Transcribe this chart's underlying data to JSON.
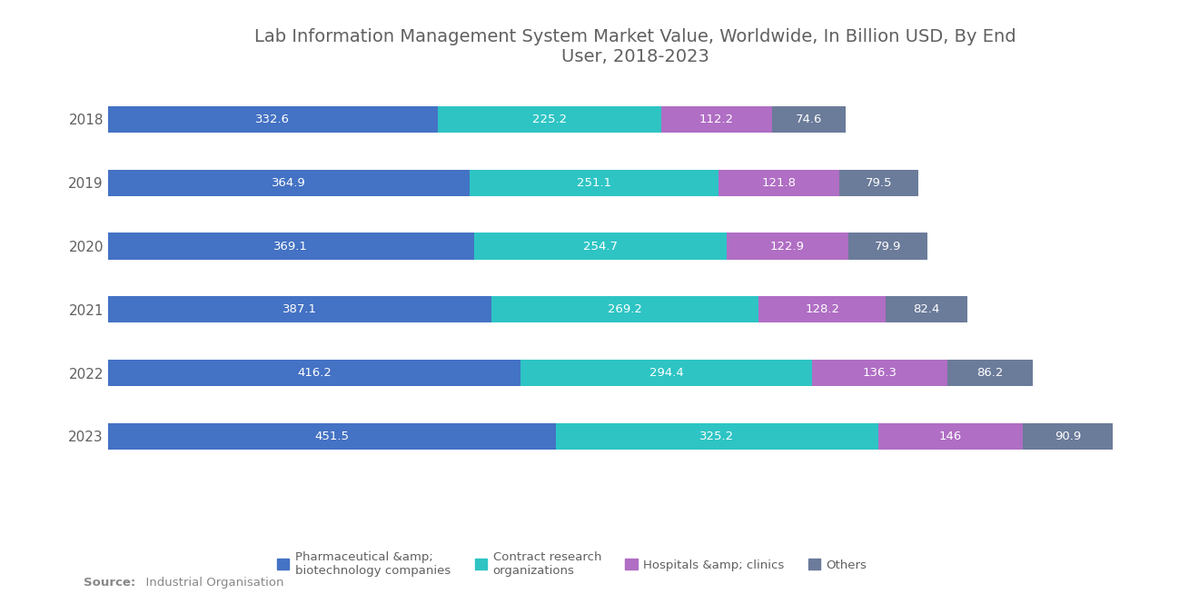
{
  "title": "Lab Information Management System Market Value, Worldwide, In Billion USD, By End\nUser, 2018-2023",
  "years": [
    "2018",
    "2019",
    "2020",
    "2021",
    "2022",
    "2023"
  ],
  "series": {
    "Pharmaceutical &amp;\nbiotechnology companies": [
      332.6,
      364.9,
      369.1,
      387.1,
      416.2,
      451.5
    ],
    "Contract research\norganizations": [
      225.2,
      251.1,
      254.7,
      269.2,
      294.4,
      325.2
    ],
    "Hospitals &amp; clinics": [
      112.2,
      121.8,
      122.9,
      128.2,
      136.3,
      146
    ],
    "Others": [
      74.6,
      79.5,
      79.9,
      82.4,
      86.2,
      90.9
    ]
  },
  "colors": [
    "#4472C4",
    "#2EC4C4",
    "#B06EC4",
    "#6B7B9A"
  ],
  "bar_height": 0.42,
  "background_color": "#FFFFFF",
  "legend_labels": [
    "Pharmaceutical &amp;\nbiotechnology companies",
    "Contract research\norganizations",
    "Hospitals &amp; clinics",
    "Others"
  ],
  "source_bold": "Source:",
  "source_rest": "  Industrial Organisation",
  "label_color": "#FFFFFF",
  "title_color": "#606060",
  "tick_color": "#606060",
  "source_color": "#888888",
  "legend_color": "#606060",
  "title_fontsize": 14,
  "tick_fontsize": 11,
  "label_fontsize": 9.5,
  "source_fontsize": 9.5,
  "legend_fontsize": 9.5
}
